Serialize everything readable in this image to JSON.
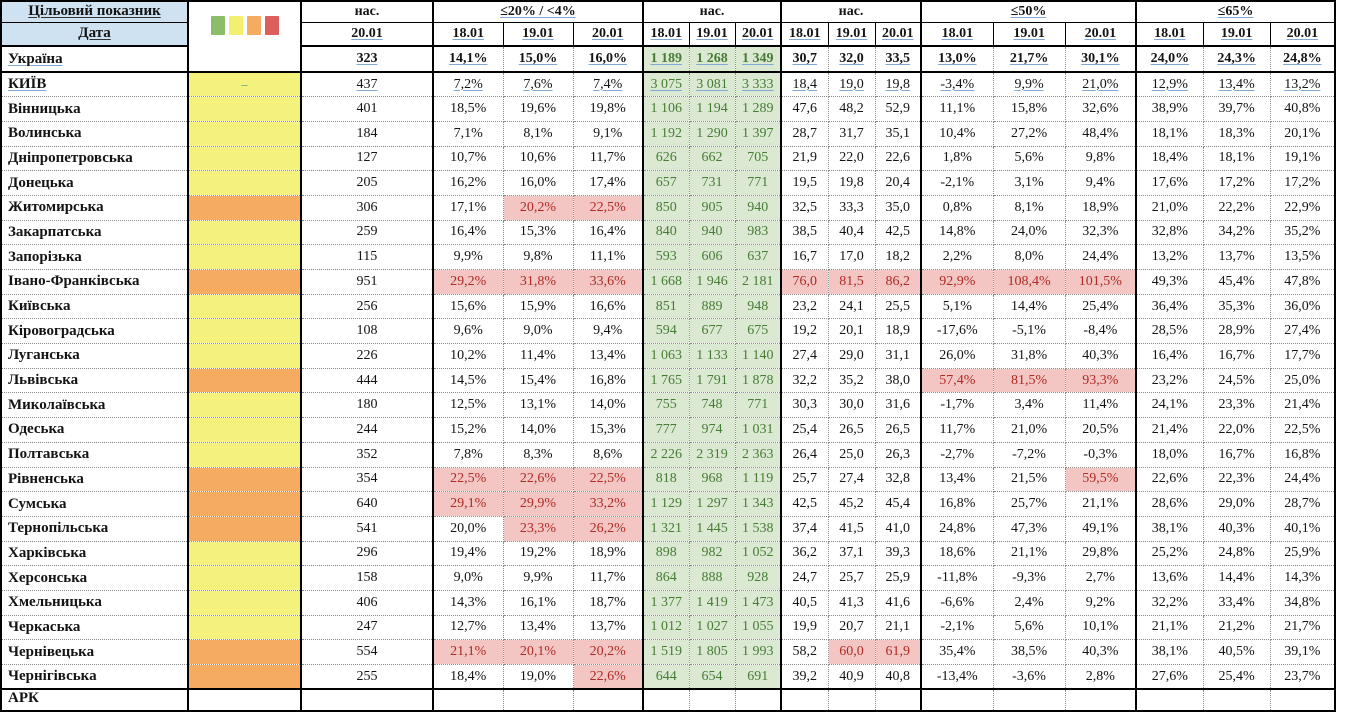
{
  "table": {
    "corner_top": "Цільовий показник",
    "corner_bottom": "Дата",
    "legend": {
      "colors": [
        "#8CBE68",
        "#F2F06E",
        "#F5AB60",
        "#DC5F5C"
      ]
    },
    "indicator_colors": {
      "yellow": "#F4F17C",
      "orange": "#F5AC61"
    },
    "status_colors": {
      "red_bg": "#F3C6C4",
      "red_text": "#AE2A24",
      "green_bg": "#DBE9D2",
      "green_text": "#477C34",
      "header_bg": "#CFE2F2"
    },
    "groups": [
      {
        "title": "нас.",
        "dates": [
          "20.01"
        ]
      },
      {
        "title": "≤20% / <4%",
        "dates": [
          "18.01",
          "19.01",
          "20.01"
        ]
      },
      {
        "title": "нас.",
        "dates": [
          "18.01",
          "19.01",
          "20.01"
        ]
      },
      {
        "title": "нас.",
        "dates": [
          "18.01",
          "19.01",
          "20.01"
        ]
      },
      {
        "title": "≤50%",
        "dates": [
          "18.01",
          "19.01",
          "20.01"
        ]
      },
      {
        "title": "≤65%",
        "dates": [
          "18.01",
          "19.01",
          "20.01"
        ]
      }
    ],
    "rows": [
      {
        "name": "Україна",
        "ind": "none",
        "b": 1,
        "u": 1,
        "nas1": "323",
        "p20": [
          "14,1%",
          "15,0%",
          "16,0%"
        ],
        "green": [
          "1 189",
          "1 268",
          "1 349"
        ],
        "nas3": [
          "30,7",
          "32,0",
          "33,5"
        ],
        "p50": [
          "13,0%",
          "21,7%",
          "30,1%"
        ],
        "p65": [
          "24,0%",
          "24,3%",
          "24,8%"
        ]
      },
      {
        "name": "КИЇВ",
        "ind": "yellow",
        "dash": 1,
        "u": 1,
        "nas1": "437",
        "p20": [
          "7,2%",
          "7,6%",
          "7,4%"
        ],
        "green": [
          "3 075",
          "3 081",
          "3 333"
        ],
        "nas3": [
          "18,4",
          "19,0",
          "19,8"
        ],
        "p50": [
          "-3,4%",
          "9,9%",
          "21,0%"
        ],
        "p65": [
          "12,9%",
          "13,4%",
          "13,2%"
        ]
      },
      {
        "name": "Вінницька",
        "ind": "yellow",
        "nas1": "401",
        "p20": [
          "18,5%",
          "19,6%",
          "19,8%"
        ],
        "green": [
          "1 106",
          "1 194",
          "1 289"
        ],
        "nas3": [
          "47,6",
          "48,2",
          "52,9"
        ],
        "p50": [
          "11,1%",
          "15,8%",
          "32,6%"
        ],
        "p65": [
          "38,9%",
          "39,7%",
          "40,8%"
        ]
      },
      {
        "name": "Волинська",
        "ind": "yellow",
        "nas1": "184",
        "p20": [
          "7,1%",
          "8,1%",
          "9,1%"
        ],
        "green": [
          "1 192",
          "1 290",
          "1 397"
        ],
        "nas3": [
          "28,7",
          "31,7",
          "35,1"
        ],
        "p50": [
          "10,4%",
          "27,2%",
          "48,4%"
        ],
        "p65": [
          "18,1%",
          "18,3%",
          "20,1%"
        ]
      },
      {
        "name": "Дніпропетровська",
        "ind": "yellow",
        "nas1": "127",
        "p20": [
          "10,7%",
          "10,6%",
          "11,7%"
        ],
        "green": [
          "626",
          "662",
          "705"
        ],
        "nas3": [
          "21,9",
          "22,0",
          "22,6"
        ],
        "p50": [
          "1,8%",
          "5,6%",
          "9,8%"
        ],
        "p65": [
          "18,4%",
          "18,1%",
          "19,1%"
        ]
      },
      {
        "name": "Донецька",
        "ind": "yellow",
        "nas1": "205",
        "p20": [
          "16,2%",
          "16,0%",
          "17,4%"
        ],
        "green": [
          "657",
          "731",
          "771"
        ],
        "nas3": [
          "19,5",
          "19,8",
          "20,4"
        ],
        "p50": [
          "-2,1%",
          "3,1%",
          "9,4%"
        ],
        "p65": [
          "17,6%",
          "17,2%",
          "17,2%"
        ]
      },
      {
        "name": "Житомирська",
        "ind": "orange",
        "nas1": "306",
        "p20": [
          "17,1%",
          "20,2%",
          "22,5%"
        ],
        "p20h": [
          0,
          1,
          1
        ],
        "green": [
          "850",
          "905",
          "940"
        ],
        "nas3": [
          "32,5",
          "33,3",
          "35,0"
        ],
        "p50": [
          "0,8%",
          "8,1%",
          "18,9%"
        ],
        "p65": [
          "21,0%",
          "22,2%",
          "22,9%"
        ]
      },
      {
        "name": "Закарпатська",
        "ind": "yellow",
        "nas1": "259",
        "p20": [
          "16,4%",
          "15,3%",
          "16,4%"
        ],
        "green": [
          "840",
          "940",
          "983"
        ],
        "nas3": [
          "38,5",
          "40,4",
          "42,5"
        ],
        "p50": [
          "14,8%",
          "24,0%",
          "32,3%"
        ],
        "p65": [
          "32,8%",
          "34,2%",
          "35,2%"
        ]
      },
      {
        "name": "Запорізька",
        "ind": "yellow",
        "nas1": "115",
        "p20": [
          "9,9%",
          "9,8%",
          "11,1%"
        ],
        "green": [
          "593",
          "606",
          "637"
        ],
        "nas3": [
          "16,7",
          "17,0",
          "18,2"
        ],
        "p50": [
          "2,2%",
          "8,0%",
          "24,4%"
        ],
        "p65": [
          "13,2%",
          "13,7%",
          "13,5%"
        ]
      },
      {
        "name": "Івано-Франківська",
        "ind": "orange",
        "nas1": "951",
        "p20": [
          "29,2%",
          "31,8%",
          "33,6%"
        ],
        "p20h": [
          1,
          1,
          1
        ],
        "green": [
          "1 668",
          "1 946",
          "2 181"
        ],
        "nas3": [
          "76,0",
          "81,5",
          "86,2"
        ],
        "nas3h": [
          1,
          1,
          1
        ],
        "p50": [
          "92,9%",
          "108,4%",
          "101,5%"
        ],
        "p50h": [
          1,
          1,
          1
        ],
        "p65": [
          "49,3%",
          "45,4%",
          "47,8%"
        ]
      },
      {
        "name": "Київська",
        "ind": "yellow",
        "nas1": "256",
        "p20": [
          "15,6%",
          "15,9%",
          "16,6%"
        ],
        "green": [
          "851",
          "889",
          "948"
        ],
        "nas3": [
          "23,2",
          "24,1",
          "25,5"
        ],
        "p50": [
          "5,1%",
          "14,4%",
          "25,4%"
        ],
        "p65": [
          "36,4%",
          "35,3%",
          "36,0%"
        ]
      },
      {
        "name": "Кіровоградська",
        "ind": "yellow",
        "nas1": "108",
        "p20": [
          "9,6%",
          "9,0%",
          "9,4%"
        ],
        "green": [
          "594",
          "677",
          "675"
        ],
        "nas3": [
          "19,2",
          "20,1",
          "18,9"
        ],
        "p50": [
          "-17,6%",
          "-5,1%",
          "-8,4%"
        ],
        "p65": [
          "28,5%",
          "28,9%",
          "27,4%"
        ]
      },
      {
        "name": "Луганська",
        "ind": "yellow",
        "nas1": "226",
        "p20": [
          "10,2%",
          "11,4%",
          "13,4%"
        ],
        "green": [
          "1 063",
          "1 133",
          "1 140"
        ],
        "nas3": [
          "27,4",
          "29,0",
          "31,1"
        ],
        "p50": [
          "26,0%",
          "31,8%",
          "40,3%"
        ],
        "p65": [
          "16,4%",
          "16,7%",
          "17,7%"
        ]
      },
      {
        "name": "Львівська",
        "ind": "orange",
        "nas1": "444",
        "p20": [
          "14,5%",
          "15,4%",
          "16,8%"
        ],
        "green": [
          "1 765",
          "1 791",
          "1 878"
        ],
        "nas3": [
          "32,2",
          "35,2",
          "38,0"
        ],
        "p50": [
          "57,4%",
          "81,5%",
          "93,3%"
        ],
        "p50h": [
          1,
          1,
          1
        ],
        "p65": [
          "23,2%",
          "24,5%",
          "25,0%"
        ]
      },
      {
        "name": "Миколаївська",
        "ind": "yellow",
        "nas1": "180",
        "p20": [
          "12,5%",
          "13,1%",
          "14,0%"
        ],
        "green": [
          "755",
          "748",
          "771"
        ],
        "nas3": [
          "30,3",
          "30,0",
          "31,6"
        ],
        "p50": [
          "-1,7%",
          "3,4%",
          "11,4%"
        ],
        "p65": [
          "24,1%",
          "23,3%",
          "21,4%"
        ]
      },
      {
        "name": "Одеська",
        "ind": "yellow",
        "nas1": "244",
        "p20": [
          "15,2%",
          "14,0%",
          "15,3%"
        ],
        "green": [
          "777",
          "974",
          "1 031"
        ],
        "nas3": [
          "25,4",
          "26,5",
          "26,5"
        ],
        "p50": [
          "11,7%",
          "21,0%",
          "20,5%"
        ],
        "p65": [
          "21,4%",
          "22,0%",
          "22,5%"
        ]
      },
      {
        "name": "Полтавська",
        "ind": "yellow",
        "nas1": "352",
        "p20": [
          "7,8%",
          "8,3%",
          "8,6%"
        ],
        "green": [
          "2 226",
          "2 319",
          "2 363"
        ],
        "nas3": [
          "26,4",
          "25,0",
          "26,3"
        ],
        "p50": [
          "-2,7%",
          "-7,2%",
          "-0,3%"
        ],
        "p65": [
          "18,0%",
          "16,7%",
          "16,8%"
        ]
      },
      {
        "name": "Рівненська",
        "ind": "orange",
        "nas1": "354",
        "p20": [
          "22,5%",
          "22,6%",
          "22,5%"
        ],
        "p20h": [
          1,
          1,
          1
        ],
        "green": [
          "818",
          "968",
          "1 119"
        ],
        "nas3": [
          "25,7",
          "27,4",
          "32,8"
        ],
        "p50": [
          "13,4%",
          "21,5%",
          "59,5%"
        ],
        "p50h": [
          0,
          0,
          1
        ],
        "p65": [
          "22,6%",
          "22,3%",
          "24,4%"
        ]
      },
      {
        "name": "Сумська",
        "ind": "orange",
        "nas1": "640",
        "p20": [
          "29,1%",
          "29,9%",
          "33,2%"
        ],
        "p20h": [
          1,
          1,
          1
        ],
        "green": [
          "1 129",
          "1 297",
          "1 343"
        ],
        "nas3": [
          "42,5",
          "45,2",
          "45,4"
        ],
        "p50": [
          "16,8%",
          "25,7%",
          "21,1%"
        ],
        "p65": [
          "28,6%",
          "29,0%",
          "28,7%"
        ]
      },
      {
        "name": "Тернопільська",
        "ind": "orange",
        "nas1": "541",
        "p20": [
          "20,0%",
          "23,3%",
          "26,2%"
        ],
        "p20h": [
          0,
          1,
          1
        ],
        "green": [
          "1 321",
          "1 445",
          "1 538"
        ],
        "nas3": [
          "37,4",
          "41,5",
          "41,0"
        ],
        "p50": [
          "24,8%",
          "47,3%",
          "49,1%"
        ],
        "p65": [
          "38,1%",
          "40,3%",
          "40,1%"
        ]
      },
      {
        "name": "Харківська",
        "ind": "yellow",
        "nas1": "296",
        "p20": [
          "19,4%",
          "19,2%",
          "18,9%"
        ],
        "green": [
          "898",
          "982",
          "1 052"
        ],
        "nas3": [
          "36,2",
          "37,1",
          "39,3"
        ],
        "p50": [
          "18,6%",
          "21,1%",
          "29,8%"
        ],
        "p65": [
          "25,2%",
          "24,8%",
          "25,9%"
        ]
      },
      {
        "name": "Херсонська",
        "ind": "yellow",
        "nas1": "158",
        "p20": [
          "9,0%",
          "9,9%",
          "11,7%"
        ],
        "green": [
          "864",
          "888",
          "928"
        ],
        "nas3": [
          "24,7",
          "25,7",
          "25,9"
        ],
        "p50": [
          "-11,8%",
          "-9,3%",
          "2,7%"
        ],
        "p65": [
          "13,6%",
          "14,4%",
          "14,3%"
        ]
      },
      {
        "name": "Хмельницька",
        "ind": "yellow",
        "nas1": "406",
        "p20": [
          "14,3%",
          "16,1%",
          "18,7%"
        ],
        "green": [
          "1 377",
          "1 419",
          "1 473"
        ],
        "nas3": [
          "40,5",
          "41,3",
          "41,6"
        ],
        "p50": [
          "-6,6%",
          "2,4%",
          "9,2%"
        ],
        "p65": [
          "32,2%",
          "33,4%",
          "34,8%"
        ]
      },
      {
        "name": "Черкаська",
        "ind": "yellow",
        "nas1": "247",
        "p20": [
          "12,7%",
          "13,4%",
          "13,7%"
        ],
        "green": [
          "1 012",
          "1 027",
          "1 055"
        ],
        "nas3": [
          "19,9",
          "20,7",
          "21,1"
        ],
        "p50": [
          "-2,1%",
          "5,6%",
          "10,1%"
        ],
        "p65": [
          "21,1%",
          "21,2%",
          "21,7%"
        ]
      },
      {
        "name": "Чернівецька",
        "ind": "orange",
        "nas1": "554",
        "p20": [
          "21,1%",
          "20,1%",
          "20,2%"
        ],
        "p20h": [
          1,
          1,
          1
        ],
        "green": [
          "1 519",
          "1 805",
          "1 993"
        ],
        "nas3": [
          "58,2",
          "60,0",
          "61,9"
        ],
        "nas3h": [
          0,
          1,
          1
        ],
        "p50": [
          "35,4%",
          "38,5%",
          "40,3%"
        ],
        "p65": [
          "38,1%",
          "40,5%",
          "39,1%"
        ]
      },
      {
        "name": "Чернігівська",
        "ind": "orange",
        "nas1": "255",
        "p20": [
          "18,4%",
          "19,0%",
          "22,6%"
        ],
        "p20h": [
          0,
          0,
          1
        ],
        "green": [
          "644",
          "654",
          "691"
        ],
        "nas3": [
          "39,2",
          "40,9",
          "40,8"
        ],
        "p50": [
          "-13,4%",
          "-3,6%",
          "2,8%"
        ],
        "p65": [
          "27,6%",
          "25,4%",
          "23,7%"
        ]
      }
    ],
    "footer": {
      "name": "АРК"
    }
  }
}
